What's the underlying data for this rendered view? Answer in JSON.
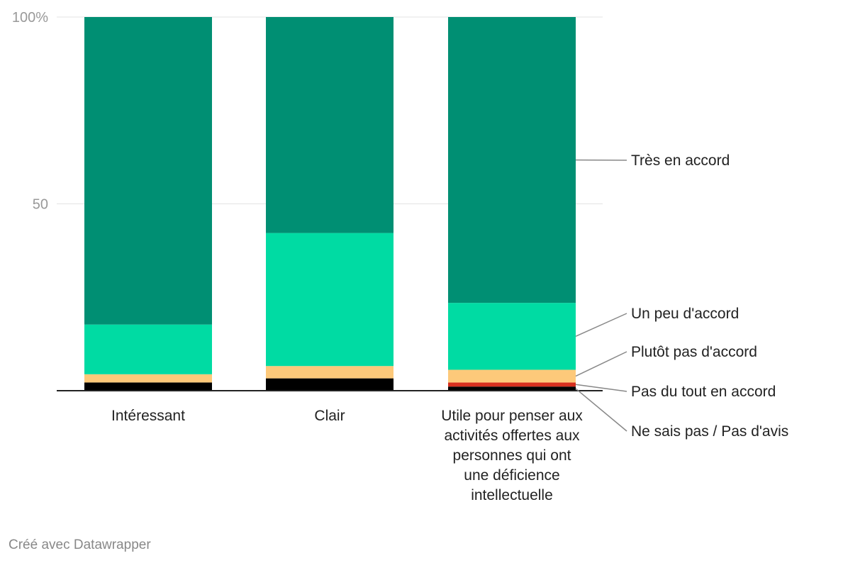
{
  "chart_data": {
    "type": "bar",
    "stacked": true,
    "orientation": "vertical",
    "ylim": [
      0,
      100
    ],
    "yticks": [
      {
        "value": 100,
        "label": "100%"
      },
      {
        "value": 50,
        "label": "50"
      }
    ],
    "categories": [
      {
        "name": "Intéressant",
        "lines": [
          "Intéressant"
        ]
      },
      {
        "name": "Clair",
        "lines": [
          "Clair"
        ]
      },
      {
        "name": "Utile pour penser aux activités offertes aux personnes qui ont une déficience intellectuelle",
        "lines": [
          "Utile pour penser aux",
          "activités offertes aux",
          "personnes qui ont",
          "une déficience",
          "intellectuelle"
        ]
      }
    ],
    "series": [
      {
        "name": "Ne sais pas / Pas d'avis",
        "color": "#000000",
        "values": [
          2.2,
          3.3,
          1.1
        ]
      },
      {
        "name": "Pas du tout en accord",
        "color": "#d7301f",
        "values": [
          0,
          0,
          1.1
        ]
      },
      {
        "name": "Plutôt pas d'accord",
        "color": "#fdc97a",
        "values": [
          2.2,
          3.3,
          3.4
        ]
      },
      {
        "name": "Un peu d'accord",
        "color": "#00dba3",
        "values": [
          13.3,
          35.6,
          17.9
        ]
      },
      {
        "name": "Très en accord",
        "color": "#008f73",
        "values": [
          82.3,
          57.8,
          76.5
        ]
      }
    ],
    "legend_placement": "right, inline labels",
    "grid": true
  },
  "footer": {
    "text": "Créé avec Datawrapper"
  }
}
